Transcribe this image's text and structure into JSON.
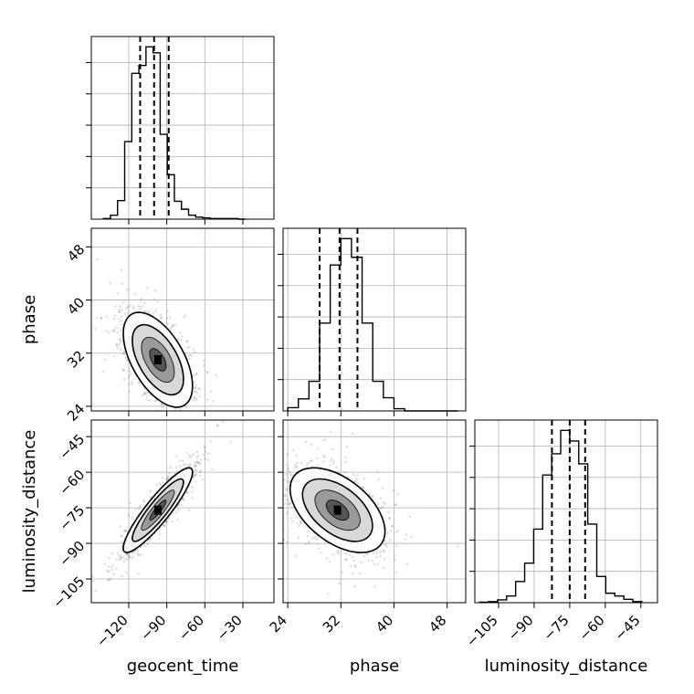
{
  "chart_data": {
    "type": "corner",
    "parameters": [
      "geocent_time",
      "phase",
      "luminosity_distance"
    ],
    "axis_labels": {
      "geocent_time": "geocent_time",
      "phase": "phase",
      "luminosity_distance": "luminosity_distance"
    },
    "ranges": {
      "geocent_time": [
        -149.5,
        -5.5
      ],
      "phase": [
        23.3,
        50.8
      ],
      "luminosity_distance": [
        -115,
        -38
      ]
    },
    "ticks": {
      "geocent_time": [
        -120,
        -90,
        -60,
        -30
      ],
      "phase": [
        24,
        32,
        40,
        48
      ],
      "luminosity_distance": [
        -105,
        -90,
        -75,
        -60,
        -45
      ]
    },
    "tick_labels": {
      "geocent_time": [
        "−120",
        "−90",
        "−60",
        "−30"
      ],
      "phase": [
        "24",
        "32",
        "40",
        "48"
      ],
      "luminosity_distance": [
        "−105",
        "−90",
        "−75",
        "−60",
        "−45"
      ]
    },
    "grid": true,
    "histograms": {
      "geocent_time": {
        "bin_edges": [
          -140.0,
          -134.4,
          -128.8,
          -123.2,
          -117.6,
          -112.0,
          -106.4,
          -100.8,
          -95.2,
          -89.6,
          -84.0,
          -78.4,
          -72.8,
          -67.2,
          -61.6,
          -56.0,
          -50.4,
          -44.8,
          -39.2,
          -33.6,
          -28.0
        ],
        "counts": [
          1,
          6,
          28,
          117,
          220,
          232,
          260,
          251,
          128,
          67,
          27,
          15,
          6,
          3,
          2,
          1,
          1,
          1,
          1,
          0
        ]
      },
      "phase": {
        "bin_edges": [
          24.0,
          25.6,
          27.2,
          28.8,
          30.4,
          32.0,
          33.6,
          35.2,
          36.8,
          38.4,
          40.0,
          41.6,
          43.2,
          44.8,
          46.4,
          48.0,
          49.6
        ],
        "counts": [
          3,
          11,
          27,
          80,
          133,
          157,
          140,
          80,
          27,
          12,
          2,
          0,
          0,
          0,
          0,
          0
        ]
      },
      "luminosity_distance": {
        "bin_edges": [
          -113.0,
          -109.2,
          -105.4,
          -101.6,
          -97.8,
          -94.0,
          -90.2,
          -86.4,
          -82.6,
          -78.8,
          -75.0,
          -71.2,
          -67.4,
          -63.6,
          -59.8,
          -56.0,
          -52.2,
          -48.4,
          -44.6
        ],
        "counts": [
          1,
          2,
          5,
          12,
          38,
          71,
          132,
          229,
          267,
          309,
          290,
          249,
          141,
          47,
          17,
          12,
          6,
          2
        ]
      }
    },
    "quantiles": {
      "geocent_time": [
        -111,
        -100,
        -88.5
      ],
      "phase": [
        28.8,
        31.8,
        34.5
      ],
      "luminosity_distance": [
        -82.5,
        -75,
        -68.5
      ]
    },
    "contour_centers": {
      "geocent_time|phase": {
        "x": -97,
        "y": 31
      },
      "geocent_time|luminosity_distance": {
        "x": -97,
        "y": -76
      },
      "phase|luminosity_distance": {
        "x": 31.5,
        "y": -76
      }
    },
    "correlations": {
      "geocent_time|phase": -0.55,
      "geocent_time|luminosity_distance": 0.9,
      "phase|luminosity_distance": -0.5
    },
    "colors": {
      "line": "#000000",
      "scatter": "#000000",
      "grid": "#b0b0b0"
    }
  }
}
